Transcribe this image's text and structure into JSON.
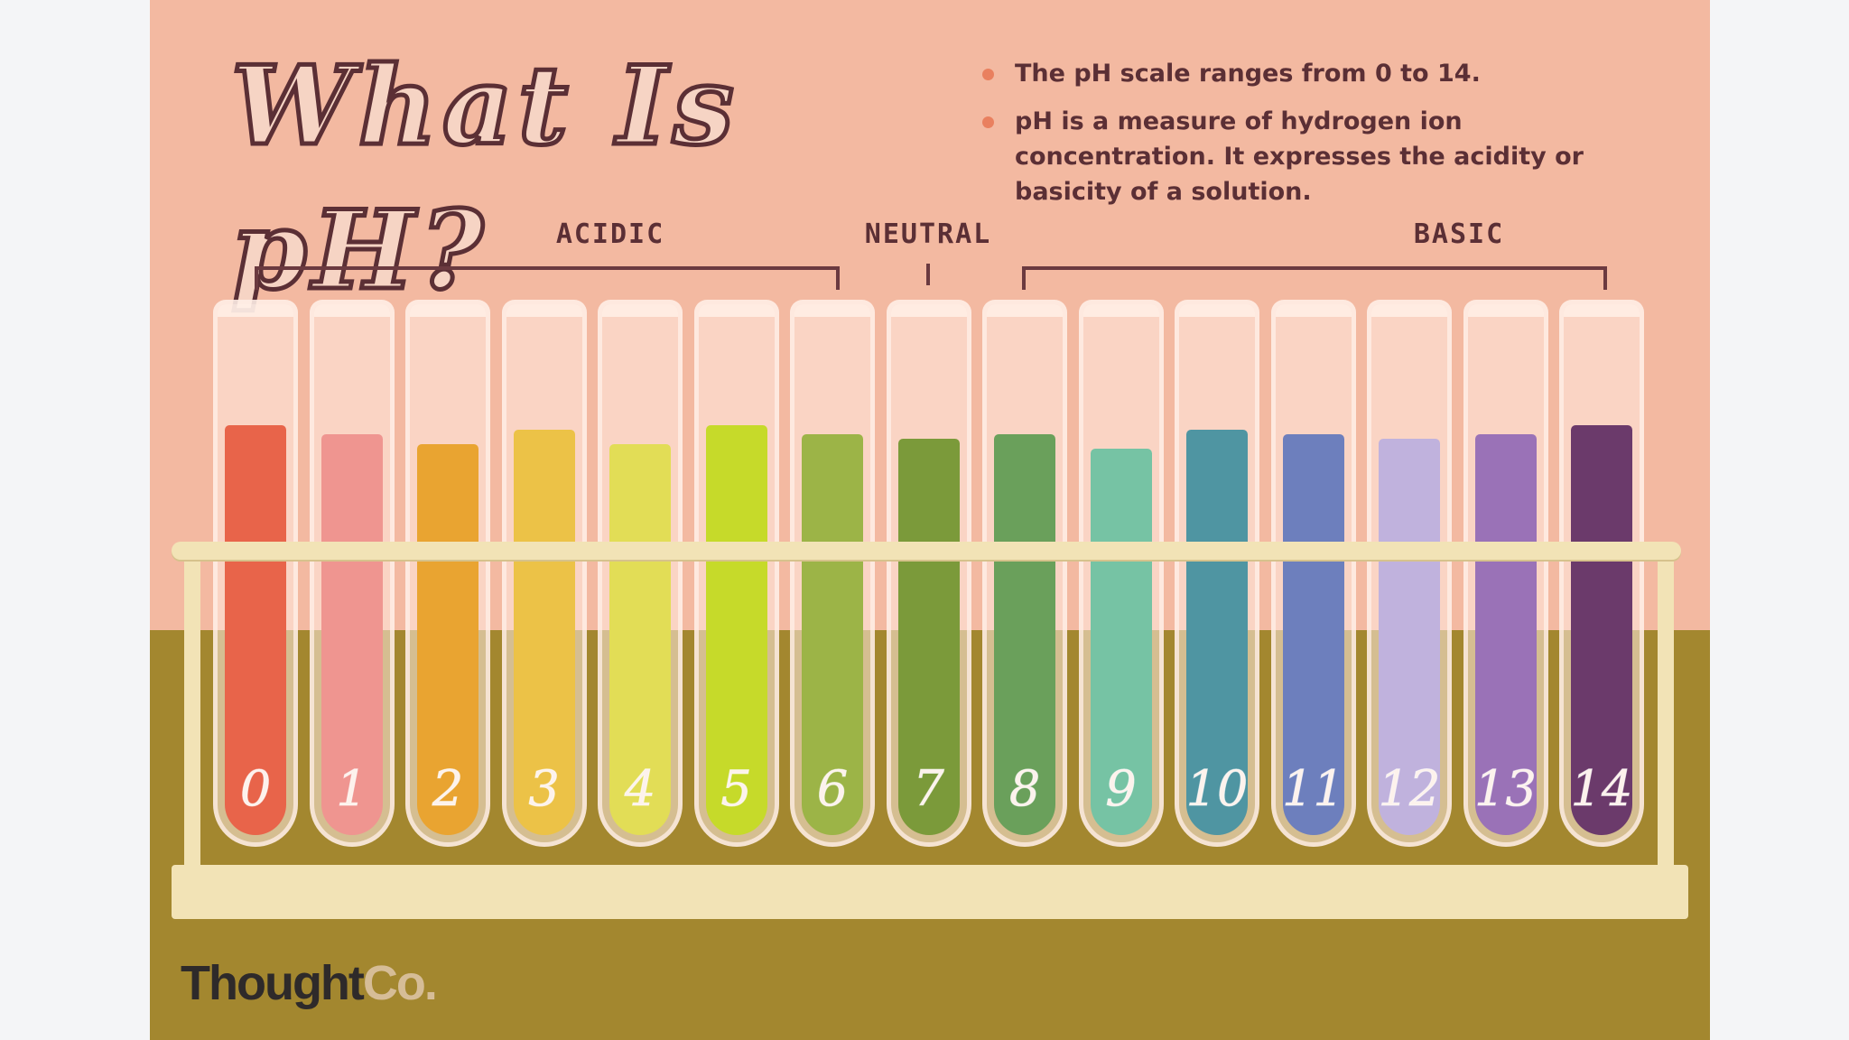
{
  "title": "What Is pH?",
  "bullets": [
    "The pH scale ranges from 0 to 14.",
    "pH is a measure of hydrogen ion concentration. It expresses the acidity or basicity of a solution."
  ],
  "groups": {
    "acidic": "ACIDIC",
    "neutral": "NEUTRAL",
    "basic": "BASIC"
  },
  "tubes": [
    {
      "label": "0",
      "color": "#e8644a",
      "fill": 0.88
    },
    {
      "label": "1",
      "color": "#ef9590",
      "fill": 0.86
    },
    {
      "label": "2",
      "color": "#e9a431",
      "fill": 0.84
    },
    {
      "label": "3",
      "color": "#ecc247",
      "fill": 0.87
    },
    {
      "label": "4",
      "color": "#e2dd56",
      "fill": 0.84
    },
    {
      "label": "5",
      "color": "#c6da2a",
      "fill": 0.88
    },
    {
      "label": "6",
      "color": "#9cb447",
      "fill": 0.86
    },
    {
      "label": "7",
      "color": "#7b9a3a",
      "fill": 0.85
    },
    {
      "label": "8",
      "color": "#6aa05b",
      "fill": 0.86
    },
    {
      "label": "9",
      "color": "#76c3a4",
      "fill": 0.83
    },
    {
      "label": "10",
      "color": "#4f95a2",
      "fill": 0.87
    },
    {
      "label": "11",
      "color": "#6d7fbd",
      "fill": 0.86
    },
    {
      "label": "12",
      "color": "#c0b2dd",
      "fill": 0.85
    },
    {
      "label": "13",
      "color": "#9a72b7",
      "fill": 0.86
    },
    {
      "label": "14",
      "color": "#6b3a6b",
      "fill": 0.88
    }
  ],
  "logo": {
    "part1": "Thought",
    "part2": "Co."
  }
}
